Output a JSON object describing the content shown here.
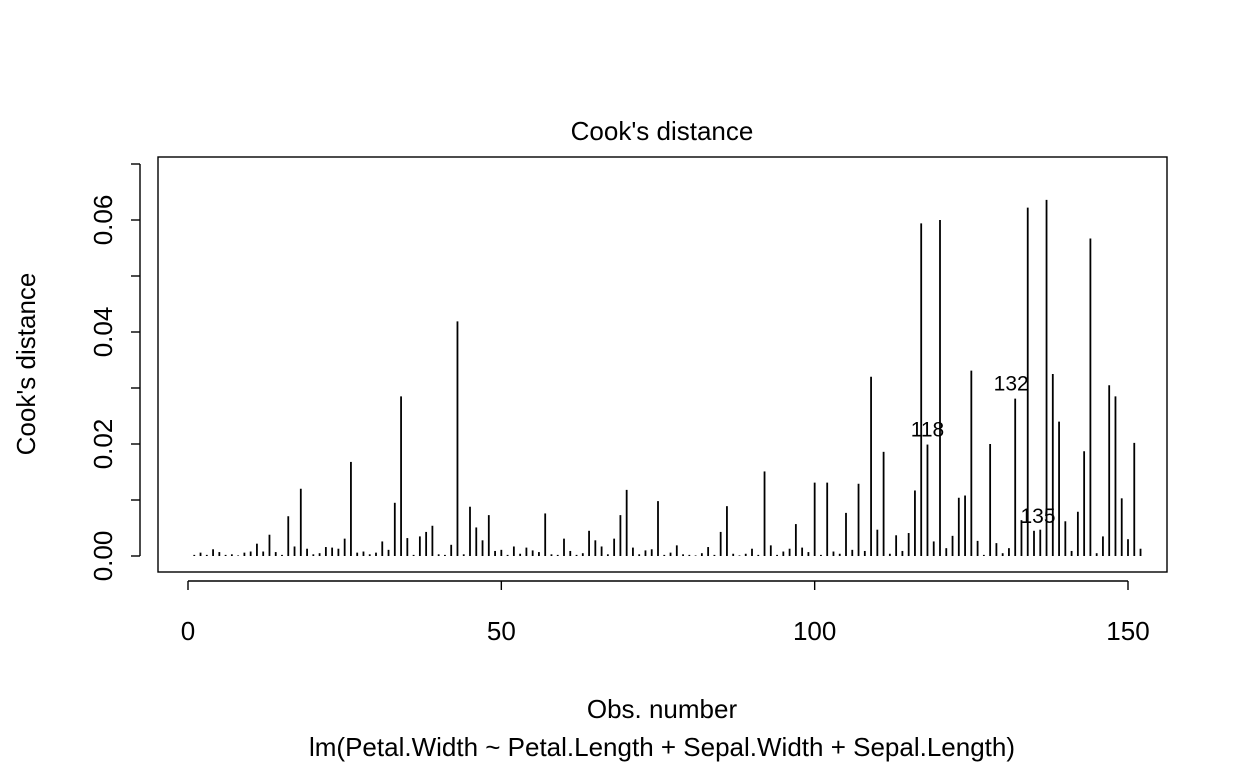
{
  "chart_data": {
    "type": "bar",
    "style": "spikes",
    "title": "Cook's distance",
    "xlabel": "Obs. number",
    "subtitle": "lm(Petal.Width ~ Petal.Length + Sepal.Width + Sepal.Length)",
    "ylabel": "Cook's distance",
    "xlim": [
      0,
      155
    ],
    "ylim": [
      0,
      0.065
    ],
    "x_ticks": [
      0,
      50,
      100,
      150
    ],
    "y_ticks": [
      0,
      0.02,
      0.04,
      0.06
    ],
    "x_tick_labels": [
      "0",
      "50",
      "100",
      "150"
    ],
    "y_tick_labels": [
      "0.00",
      "0.02",
      "0.04",
      "0.06"
    ],
    "grid": false,
    "values": [
      0.0002,
      0.0006,
      0.0002,
      0.0012,
      0.0007,
      0.0002,
      0.0003,
      0.0001,
      0.0006,
      0.0008,
      0.0022,
      0.0008,
      0.0038,
      0.0007,
      0.0002,
      0.0071,
      0.0017,
      0.012,
      0.0013,
      0.0003,
      0.0005,
      0.0016,
      0.0015,
      0.0013,
      0.0031,
      0.0168,
      0.0006,
      0.0008,
      0.0003,
      0.0006,
      0.0026,
      0.0011,
      0.0095,
      0.0285,
      0.0032,
      0.0002,
      0.0035,
      0.0043,
      0.0054,
      0.0003,
      0.0002,
      0.002,
      0.0419,
      0.0003,
      0.0088,
      0.0051,
      0.0028,
      0.0073,
      0.0009,
      0.0011,
      0.0002,
      0.0017,
      0.0004,
      0.0015,
      0.001,
      0.0007,
      0.0076,
      0.0003,
      0.0002,
      0.0031,
      0.0009,
      0.0002,
      0.0005,
      0.0045,
      0.0028,
      0.0017,
      0.0003,
      0.0031,
      0.0073,
      0.0118,
      0.0015,
      0.0003,
      0.001,
      0.0012,
      0.0098,
      0.0002,
      0.0006,
      0.0019,
      0.0003,
      0.0002,
      0.0001,
      0.0005,
      0.0016,
      0.0002,
      0.0043,
      0.0089,
      0.0004,
      0.0001,
      0.0004,
      0.0013,
      0.0002,
      0.0151,
      0.0019,
      0.0002,
      0.0008,
      0.0013,
      0.0057,
      0.0015,
      0.0007,
      0.0131,
      0.0002,
      0.0131,
      0.0008,
      0.0004,
      0.0077,
      0.0011,
      0.0129,
      0.0009,
      0.032,
      0.0047,
      0.0186,
      0.0004,
      0.0037,
      0.0009,
      0.0041,
      0.0117,
      0.0594,
      0.0199,
      0.0026,
      0.06,
      0.0014,
      0.0036,
      0.0104,
      0.0108,
      0.0331,
      0.0027,
      0.0002,
      0.02,
      0.0023,
      0.0005,
      0.0014,
      0.0281,
      0.0064,
      0.0622,
      0.0045,
      0.0047,
      0.0636,
      0.0325,
      0.024,
      0.0062,
      0.0009,
      0.0079,
      0.0187,
      0.0567,
      0.0005,
      0.0035,
      0.0305,
      0.0285,
      0.0103,
      0.003,
      0.0202,
      0.0013
    ],
    "point_labels": [
      {
        "x": 118,
        "label": "118"
      },
      {
        "x": 132,
        "label": "132"
      },
      {
        "x": 135,
        "label": "135"
      }
    ]
  }
}
